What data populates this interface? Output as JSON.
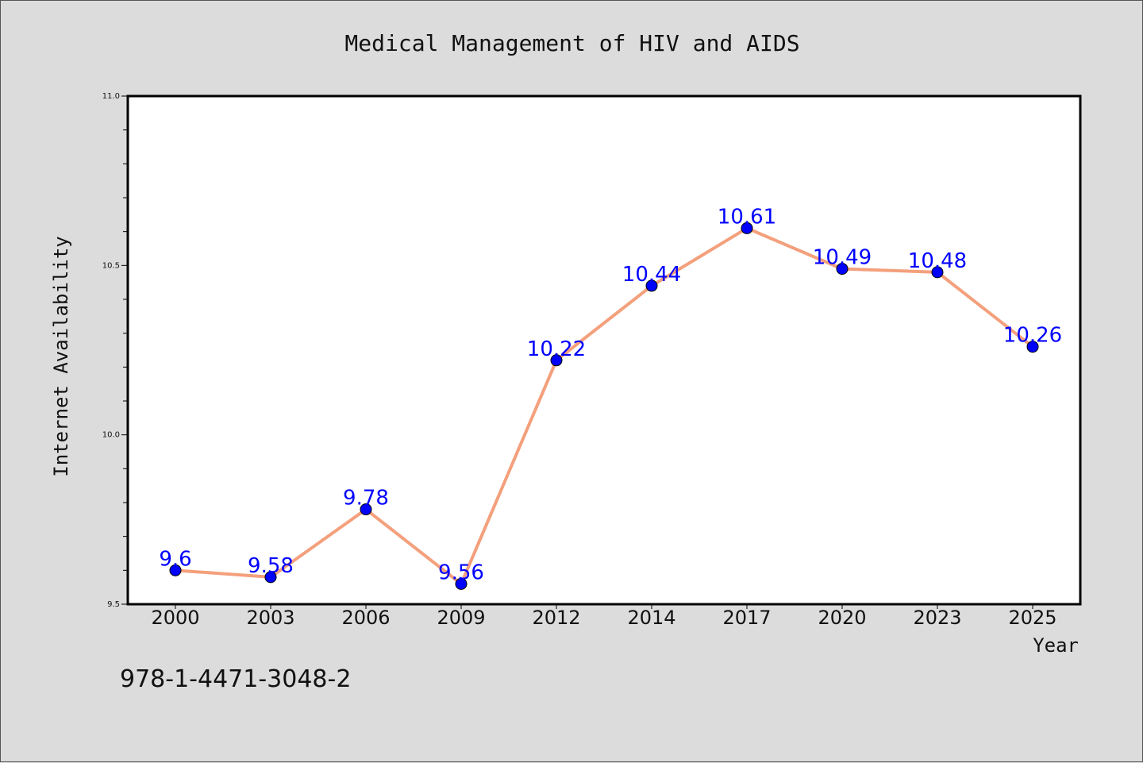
{
  "chart_data": {
    "type": "line",
    "title": "Medical Management of HIV and AIDS",
    "xlabel": "Year",
    "ylabel": "Internet Availability",
    "categories": [
      "2000",
      "2003",
      "2006",
      "2009",
      "2012",
      "2014",
      "2017",
      "2020",
      "2023",
      "2025"
    ],
    "series": [
      {
        "values": [
          9.6,
          9.58,
          9.78,
          9.56,
          10.22,
          10.44,
          10.61,
          10.49,
          10.48,
          10.26
        ],
        "data_labels": [
          "9.6",
          "9.58",
          "9.78",
          "9.56",
          "10.22",
          "10.44",
          "10.61",
          "10.49",
          "10.48",
          "10.26"
        ],
        "line_color": "#f4a07c",
        "marker_color": "#0000ff"
      }
    ],
    "ylim": [
      9.5,
      11.0
    ],
    "yticks": [
      "9.5",
      "10.0",
      "10.5",
      "11.0"
    ],
    "grid": false,
    "label_color": "#0000ff"
  },
  "footer": {
    "isbn": "978-1-4471-3048-2"
  }
}
